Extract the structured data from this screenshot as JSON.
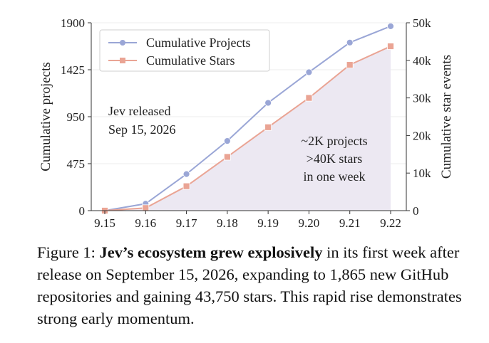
{
  "chart_data": {
    "type": "line",
    "categories": [
      "9.15",
      "9.16",
      "9.17",
      "9.18",
      "9.19",
      "9.20",
      "9.21",
      "9.22"
    ],
    "series": [
      {
        "name": "Cumulative Projects",
        "axis": "left",
        "color": "#9aa6d6",
        "marker": "circle",
        "values": [
          0,
          70,
          370,
          705,
          1090,
          1400,
          1700,
          1865
        ]
      },
      {
        "name": "Cumulative Stars",
        "axis": "right",
        "color": "#eaa494",
        "marker": "square",
        "values": [
          0,
          700,
          6500,
          14300,
          22200,
          30000,
          38800,
          43750
        ]
      }
    ],
    "y_left": {
      "label": "Cumulative projects",
      "ylim": [
        0,
        1900
      ],
      "ticks": [
        "0",
        "475",
        "950",
        "1425",
        "1900"
      ]
    },
    "y_right": {
      "label": "Cumulative star events",
      "ylim": [
        0,
        50000
      ],
      "ticks": [
        "0",
        "10k",
        "20k",
        "30k",
        "40k",
        "50k"
      ]
    },
    "grid": "horizontal",
    "legend_position": "top-left",
    "annotations": {
      "release": [
        "Jev released",
        "Sep 15, 2026"
      ],
      "summary": [
        "~2K projects",
        ">40K stars",
        "in one week"
      ]
    },
    "fill_color": "#ece8f2"
  },
  "caption": {
    "label": "Figure 1:",
    "bold": "Jev’s ecosystem grew explosively",
    "rest": "in its first week after release on September 15, 2026, expanding to 1,865 new GitHub repositories and gaining 43,750 stars. This rapid rise demonstrates strong early momentum."
  }
}
